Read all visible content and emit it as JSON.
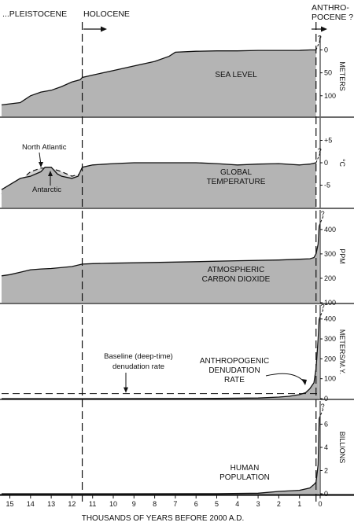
{
  "headers": {
    "pleistocene": "...PLEISTOCENE",
    "holocene": "HOLOCENE",
    "anthropocene_line1": "ANTHRO-",
    "anthropocene_line2": "POCENE ?"
  },
  "colors": {
    "fill": "#b4b4b4",
    "fill_light": "#d4d4d4",
    "stroke": "#111111"
  },
  "chart_data": [
    {
      "type": "area",
      "title": "SEA LEVEL",
      "ylabel": "METERS",
      "yticks": [
        "0",
        "50",
        "100"
      ],
      "ytick_values": [
        0,
        50,
        100
      ],
      "ylim": [
        145,
        -30
      ],
      "y_inverted": true,
      "question_mark": "?",
      "x": [
        15.4,
        14.5,
        14.0,
        13.5,
        13.0,
        12.5,
        12.0,
        11.6,
        11.5,
        11.0,
        10.0,
        9.0,
        8.0,
        7.3,
        7.0,
        6.0,
        5.0,
        4.0,
        3.0,
        2.0,
        1.0,
        0.5,
        0.2
      ],
      "y": [
        120,
        115,
        100,
        92,
        88,
        80,
        70,
        65,
        60,
        55,
        45,
        35,
        25,
        14,
        5,
        3,
        2,
        2,
        1,
        1,
        1,
        0,
        0
      ]
    },
    {
      "type": "area",
      "title": "GLOBAL",
      "title_line2": "TEMPERATURE",
      "ylabel": "°C",
      "yticks": [
        "+5",
        "0",
        "-5"
      ],
      "ytick_values": [
        5,
        0,
        -5
      ],
      "ylim": [
        -10,
        10
      ],
      "question_mark": "?",
      "annotations": [
        "North Atlantic",
        "Antarctic"
      ],
      "x": [
        15.4,
        14.5,
        14.0,
        13.5,
        13.3,
        13.0,
        12.7,
        12.5,
        12.0,
        11.7,
        11.5,
        11.0,
        10.0,
        9.0,
        8.0,
        7.0,
        6.0,
        5.0,
        4.0,
        3.0,
        2.0,
        1.0,
        0.5,
        0.2
      ],
      "y": [
        -6,
        -3.5,
        -3,
        -2,
        -1,
        -1,
        -2.5,
        -3,
        -3.5,
        -3,
        -1,
        -0.5,
        -0.2,
        0,
        0,
        0,
        0,
        -0.2,
        -0.5,
        -0.3,
        -0.2,
        -0.5,
        -0.3,
        0
      ],
      "series_light": {
        "x": [
          15.4,
          14.5,
          14.0,
          13.5,
          13.0,
          12.5,
          12.0,
          11.6
        ],
        "y": [
          -7,
          -4,
          -2,
          -1.2,
          -1.2,
          -2,
          -3,
          -2.5
        ]
      }
    },
    {
      "type": "area",
      "title": "ATMOSPHERIC",
      "title_line2": "CARBON DIOXIDE",
      "ylabel": "PPM",
      "yticks": [
        "400",
        "300",
        "200",
        "100"
      ],
      "ytick_values": [
        400,
        300,
        200,
        100
      ],
      "ylim": [
        100,
        480
      ],
      "question_mark": "?",
      "x": [
        15.4,
        15.0,
        14.5,
        14.0,
        13.5,
        13.0,
        12.0,
        11.5,
        11.0,
        10.0,
        8.0,
        6.0,
        4.0,
        2.0,
        1.0,
        0.5,
        0.3,
        0.2,
        0.1,
        0.05
      ],
      "y": [
        210,
        215,
        225,
        235,
        238,
        240,
        248,
        258,
        260,
        262,
        265,
        268,
        272,
        275,
        278,
        280,
        285,
        300,
        340,
        415
      ]
    },
    {
      "type": "area",
      "title": "ANTHROPOGENIC",
      "title_line2": "DENUDATION",
      "title_line3": "RATE",
      "ylabel": "METERS/M.Y.",
      "yticks": [
        "400",
        "300",
        "200",
        "100",
        "0"
      ],
      "ytick_values": [
        400,
        300,
        200,
        100,
        0
      ],
      "ylim": [
        0,
        470
      ],
      "question_mark": "?",
      "baseline_value": 25,
      "baseline_label_line1": "Baseline (deep-time)",
      "baseline_label_line2": "denudation rate",
      "x": [
        15.4,
        10.0,
        5.0,
        3.0,
        2.0,
        1.5,
        1.0,
        0.7,
        0.5,
        0.3,
        0.2,
        0.1,
        0.05
      ],
      "y": [
        0,
        0,
        1,
        3,
        8,
        12,
        20,
        30,
        50,
        80,
        150,
        300,
        400
      ]
    },
    {
      "type": "area",
      "title": "HUMAN",
      "title_line2": "POPULATION",
      "ylabel": "BILLIONS",
      "yticks": [
        "6",
        "4",
        "2",
        "0"
      ],
      "ytick_values": [
        6,
        4,
        2,
        0
      ],
      "ylim": [
        0,
        8
      ],
      "question_mark": "?",
      "x": [
        15.4,
        10.0,
        5.0,
        3.0,
        2.0,
        1.0,
        0.5,
        0.3,
        0.2,
        0.1,
        0.05
      ],
      "y": [
        0,
        0,
        0.01,
        0.05,
        0.2,
        0.3,
        0.5,
        0.8,
        1.0,
        2.5,
        6.5
      ]
    }
  ],
  "x_axis": {
    "ticks": [
      "15",
      "14",
      "13",
      "12",
      "11",
      "10",
      "9",
      "8",
      "7",
      "6",
      "5",
      "4",
      "3",
      "2",
      "1",
      "0"
    ],
    "tick_values": [
      15,
      14,
      13,
      12,
      11,
      10,
      9,
      8,
      7,
      6,
      5,
      4,
      3,
      2,
      1,
      0
    ],
    "xlim": [
      15.4,
      0
    ],
    "label": "THOUSANDS OF YEARS BEFORE 2000 A.D."
  },
  "boundaries": {
    "holocene_start": 11.5,
    "anthropocene_start": 0.2
  }
}
